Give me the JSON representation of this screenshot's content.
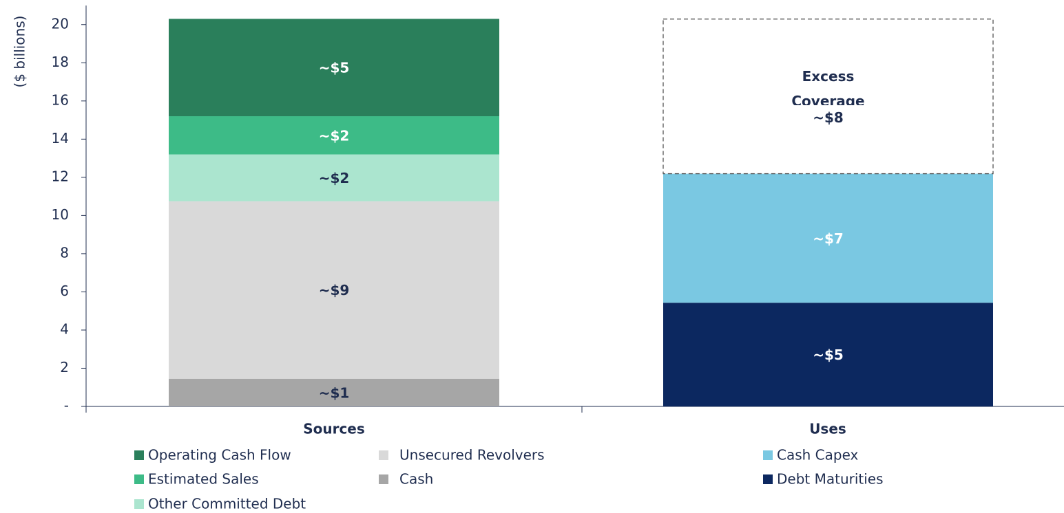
{
  "chart_data": {
    "type": "stacked_bar",
    "y_axis_label": "($ billions)",
    "categories": [
      "Sources",
      "Uses"
    ],
    "ylim": [
      0,
      21
    ],
    "yticks": [
      {
        "value": 0,
        "label": "-"
      },
      2,
      4,
      6,
      8,
      10,
      12,
      14,
      16,
      18,
      20
    ],
    "series": [
      {
        "name": "Operating Cash Flow",
        "color": "#2a7f5b",
        "label_color": "#ffffff",
        "values": [
          5.1,
          null
        ],
        "value_labels": [
          "~$5",
          null
        ]
      },
      {
        "name": "Estimated Sales",
        "color": "#3dbb87",
        "label_color": "#ffffff",
        "values": [
          2.0,
          null
        ],
        "value_labels": [
          "~$2",
          null
        ]
      },
      {
        "name": "Other Committed Debt",
        "color": "#abe5cf",
        "label_color": "#1f2d4f",
        "values": [
          2.45,
          null
        ],
        "value_labels": [
          "~$2",
          null
        ]
      },
      {
        "name": "Unsecured Revolvers",
        "color": "#d9d9d9",
        "label_color": "#1f2d4f",
        "values": [
          9.3,
          null
        ],
        "value_labels": [
          "~$9",
          null
        ]
      },
      {
        "name": "Cash",
        "color": "#a6a6a6",
        "label_color": "#1f2d4f",
        "values": [
          1.45,
          null
        ],
        "value_labels": [
          "~$1",
          null
        ]
      },
      {
        "name": "Excess Coverage",
        "color": "#ffffff",
        "label_color": "#1f2d4f",
        "style": "dashed",
        "legend": false,
        "values": [
          null,
          8.1
        ],
        "value_labels": [
          null,
          "~$8"
        ]
      },
      {
        "name": "Cash Capex",
        "color": "#7ac8e2",
        "label_color": "#ffffff",
        "values": [
          null,
          6.76
        ],
        "value_labels": [
          null,
          "~$7"
        ]
      },
      {
        "name": "Debt Maturities",
        "color": "#0c2860",
        "label_color": "#ffffff",
        "values": [
          null,
          5.43
        ],
        "value_labels": [
          null,
          "~$5"
        ]
      }
    ]
  }
}
